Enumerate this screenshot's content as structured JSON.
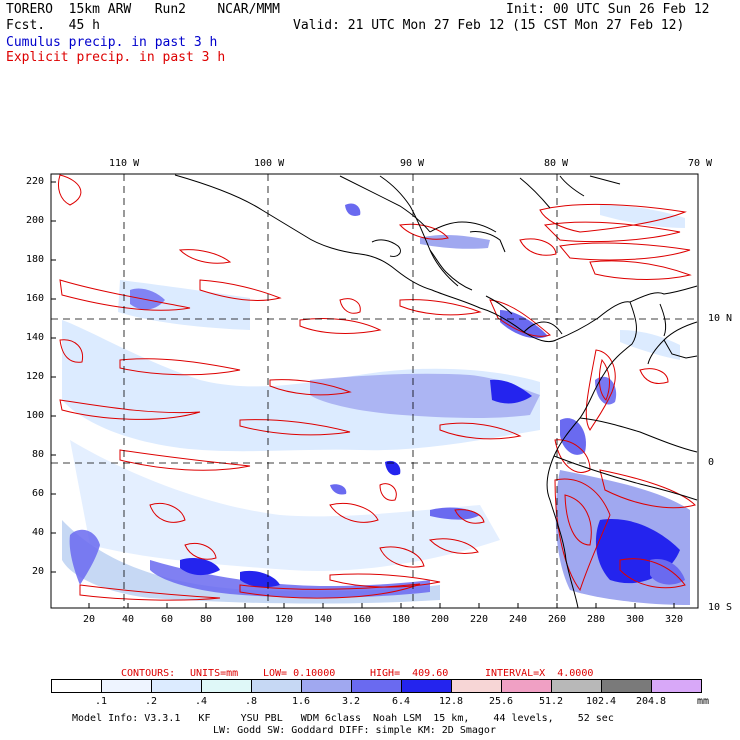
{
  "header": {
    "model_line": "TORERO  15km ARW   Run2    NCAR/MMM",
    "fcst_line": "Fcst.   45 h",
    "init_line": "Init: 00 UTC Sun 26 Feb 12",
    "valid_line": "Valid: 21 UTC Mon 27 Feb 12 (15 CST Mon 27 Feb 12)",
    "cumulus_label": "Cumulus precip. in past 3 h",
    "explicit_label": "Explicit precip. in past 3 h"
  },
  "colors": {
    "cumulus_text": "#0000cc",
    "explicit_text": "#dd0000",
    "contour": "#dd0000",
    "coast": "#000000",
    "grid": "#000000"
  },
  "map": {
    "top_lon_labels": [
      "110 W",
      "100 W",
      "90 W",
      "80 W",
      "70 W"
    ],
    "right_lat_labels": [
      "10 N",
      "0",
      "10 S"
    ],
    "y_ticks": [
      "220",
      "200",
      "180",
      "160",
      "140",
      "120",
      "100",
      "80",
      "60",
      "40",
      "20"
    ],
    "x_ticks": [
      "20",
      "40",
      "60",
      "80",
      "100",
      "120",
      "140",
      "160",
      "180",
      "200",
      "220",
      "240",
      "260",
      "280",
      "300",
      "320"
    ]
  },
  "contour_info": {
    "label": "CONTOURS:",
    "units": "UNITS=mm",
    "low": "LOW= 0.10000",
    "high": "HIGH=  409.60",
    "interval": "INTERVAL=X  4.0000"
  },
  "colorbar": {
    "labels": [
      ".1",
      ".2",
      ".4",
      ".8",
      "1.6",
      "3.2",
      "6.4",
      "12.8",
      "25.6",
      "51.2",
      "102.4",
      "204.8"
    ],
    "colors": [
      "#ffffff",
      "#eef4ff",
      "#dcebff",
      "#dff8f8",
      "#c6d8f4",
      "#a0a8f0",
      "#6a6af0",
      "#2424ee",
      "#f7d6d6",
      "#f0a0c4",
      "#b8b8b8",
      "#7a7a7a",
      "#d8a8f8"
    ],
    "units": "mm"
  },
  "footer": {
    "line1": "Model Info: V3.3.1   KF     YSU PBL   WDM 6class  Noah LSM  15 km,    44 levels,    52 sec",
    "line2": "LW: Godd SW: Goddard DIFF: simple KM: 2D Smagor"
  }
}
